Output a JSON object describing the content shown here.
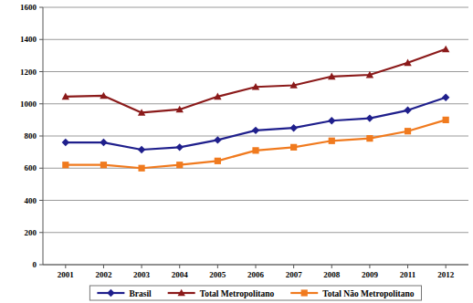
{
  "chart_data": {
    "type": "line",
    "categories": [
      "2001",
      "2002",
      "2003",
      "2004",
      "2005",
      "2006",
      "2007",
      "2008",
      "2009",
      "2011",
      "2012"
    ],
    "series": [
      {
        "name": "Brasil",
        "color": "#1f1f8c",
        "marker": "diamond",
        "values": [
          760,
          760,
          715,
          730,
          775,
          835,
          850,
          895,
          910,
          960,
          1040
        ]
      },
      {
        "name": "Total Metropolitano",
        "color": "#8b1a1a",
        "marker": "triangle",
        "values": [
          1045,
          1050,
          945,
          965,
          1045,
          1105,
          1115,
          1170,
          1180,
          1255,
          1340
        ]
      },
      {
        "name": "Total Não Metropolitano",
        "color": "#f07a1e",
        "marker": "square",
        "values": [
          620,
          620,
          600,
          620,
          645,
          710,
          730,
          770,
          785,
          830,
          900
        ]
      }
    ],
    "ylim": [
      0,
      1600
    ],
    "yticks": [
      0,
      200,
      400,
      600,
      800,
      1000,
      1200,
      1400,
      1600
    ],
    "grid": true,
    "legend": "bottom"
  }
}
